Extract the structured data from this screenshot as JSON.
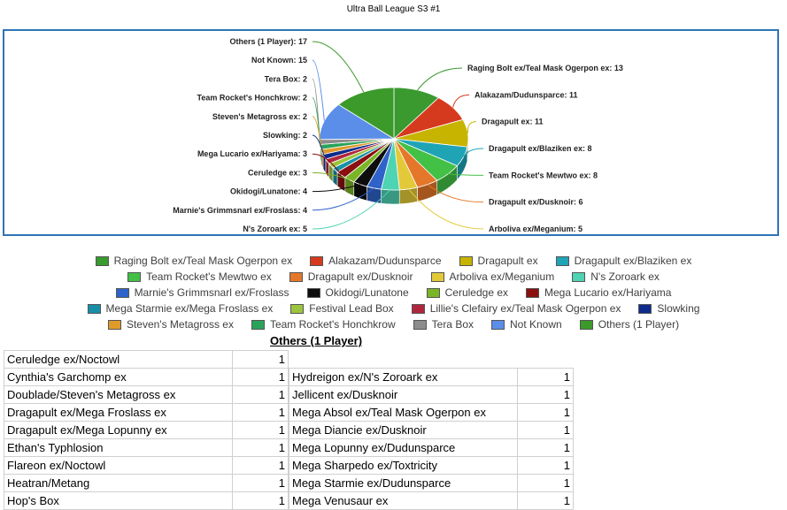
{
  "chart_data": {
    "type": "pie",
    "title": "Ultra Ball League S3 #1",
    "slices": [
      {
        "label": "Raging Bolt ex/Teal Mask Ogerpon ex",
        "value": 13,
        "color": "#3a9a2f",
        "side": "right"
      },
      {
        "label": "Alakazam/Dudunsparce",
        "value": 11,
        "color": "#d63a1e",
        "side": "right"
      },
      {
        "label": "Dragapult ex",
        "value": 11,
        "color": "#c7b400",
        "side": "right"
      },
      {
        "label": "Dragapult ex/Blaziken ex",
        "value": 8,
        "color": "#1fa4b6",
        "side": "right"
      },
      {
        "label": "Team Rocket's Mewtwo ex",
        "value": 8,
        "color": "#43c046",
        "side": "right"
      },
      {
        "label": "Dragapult ex/Dusknoir",
        "value": 6,
        "color": "#e5772a",
        "side": "right"
      },
      {
        "label": "Arboliva ex/Meganium",
        "value": 5,
        "color": "#e3c93a",
        "side": "right"
      },
      {
        "label": "N's Zoroark ex",
        "value": 5,
        "color": "#4ed3b3",
        "side": "left"
      },
      {
        "label": "Marnie's Grimmsnarl ex/Froslass",
        "value": 4,
        "color": "#2f63c9",
        "side": "left"
      },
      {
        "label": "Okidogi/Lunatone",
        "value": 4,
        "color": "#0d0d0d",
        "side": "left"
      },
      {
        "label": "Ceruledge ex",
        "value": 3,
        "color": "#7ab527",
        "side": "left"
      },
      {
        "label": "Mega Lucario ex/Hariyama",
        "value": 3,
        "color": "#8a0f0f",
        "side": "left"
      },
      {
        "label": "Mega Starmie ex/Mega Froslass ex",
        "value": 2,
        "color": "#188fa8",
        "side": "left"
      },
      {
        "label": "Festival Lead Box",
        "value": 2,
        "color": "#9bc53d",
        "side": "left"
      },
      {
        "label": "Lillie's Clefairy ex/Teal Mask Ogerpon ex",
        "value": 2,
        "color": "#b0263c",
        "side": "left"
      },
      {
        "label": "Slowking",
        "value": 2,
        "color": "#0e2a8c",
        "side": "left"
      },
      {
        "label": "Steven's Metagross ex",
        "value": 2,
        "color": "#e09a2a",
        "side": "left"
      },
      {
        "label": "Team Rocket's Honchkrow",
        "value": 2,
        "color": "#2aa35a",
        "side": "left"
      },
      {
        "label": "Tera Box",
        "value": 2,
        "color": "#8c8c8c",
        "side": "left"
      },
      {
        "label": "Not Known",
        "value": 15,
        "color": "#5a8ee8",
        "side": "left"
      },
      {
        "label": "Others (1 Player)",
        "value": 17,
        "color": "#3b9a2a",
        "side": "left"
      }
    ],
    "data_labels": [
      "Raging Bolt ex/Teal Mask Ogerpon ex: 13",
      "Alakazam/Dudunsparce: 11",
      "Dragapult ex: 11",
      "Dragapult ex/Blaziken ex: 8",
      "Team Rocket's Mewtwo ex: 8",
      "Dragapult ex/Dusknoir: 6",
      "Arboliva ex/Meganium: 5",
      "N's Zoroark ex: 5",
      "Marnie's Grimmsnarl ex/Froslass: 4",
      "Okidogi/Lunatone: 4",
      "Ceruledge ex: 3",
      "Mega Lucario ex/Hariyama: 3",
      "Slowking: 2",
      "Steven's Metagross ex: 2",
      "Team Rocket's Honchkrow: 2",
      "Tera Box: 2",
      "Not Known: 15",
      "Others (1 Player): 17"
    ],
    "legend_position": "bottom"
  },
  "legend_rows": [
    [
      "Raging Bolt ex/Teal Mask Ogerpon ex",
      "Alakazam/Dudunsparce",
      "Dragapult ex",
      "Dragapult ex/Blaziken ex"
    ],
    [
      "Team Rocket's Mewtwo ex",
      "Dragapult ex/Dusknoir",
      "Arboliva ex/Meganium",
      "N's Zoroark ex"
    ],
    [
      "Marnie's Grimmsnarl ex/Froslass",
      "Okidogi/Lunatone",
      "Ceruledge ex",
      "Mega Lucario ex/Hariyama"
    ],
    [
      "Mega Starmie ex/Mega Froslass ex",
      "Festival Lead Box",
      "Lillie's Clefairy ex/Teal Mask Ogerpon ex",
      "Slowking"
    ],
    [
      "Steven's Metagross ex",
      "Team Rocket's Honchkrow",
      "Tera Box",
      "Not Known",
      "Others (1 Player)"
    ]
  ],
  "others_section": {
    "heading": "Others (1 Player)",
    "left_table": [
      {
        "name": "Ceruledge ex/Noctowl",
        "count": "1"
      },
      {
        "name": "Cynthia's Garchomp ex",
        "count": "1"
      },
      {
        "name": "Doublade/Steven's Metagross ex",
        "count": "1"
      },
      {
        "name": "Dragapult ex/Mega Froslass ex",
        "count": "1"
      },
      {
        "name": "Dragapult ex/Mega Lopunny ex",
        "count": "1"
      },
      {
        "name": "Ethan's Typhlosion",
        "count": "1"
      },
      {
        "name": "Flareon ex/Noctowl",
        "count": "1"
      },
      {
        "name": "Heatran/Metang",
        "count": "1"
      },
      {
        "name": "Hop's Box",
        "count": "1"
      }
    ],
    "right_table": [
      {
        "name": "Hydreigon ex/N's Zoroark ex",
        "count": "1"
      },
      {
        "name": "Jellicent ex/Dusknoir",
        "count": "1"
      },
      {
        "name": "Mega Absol ex/Teal Mask Ogerpon ex",
        "count": "1"
      },
      {
        "name": "Mega Diancie ex/Dusknoir",
        "count": "1"
      },
      {
        "name": "Mega Lopunny ex/Dudunsparce",
        "count": "1"
      },
      {
        "name": "Mega Sharpedo ex/Toxtricity",
        "count": "1"
      },
      {
        "name": "Mega Starmie ex/Dudunsparce",
        "count": "1"
      },
      {
        "name": "Mega Venusaur ex",
        "count": "1"
      }
    ]
  }
}
